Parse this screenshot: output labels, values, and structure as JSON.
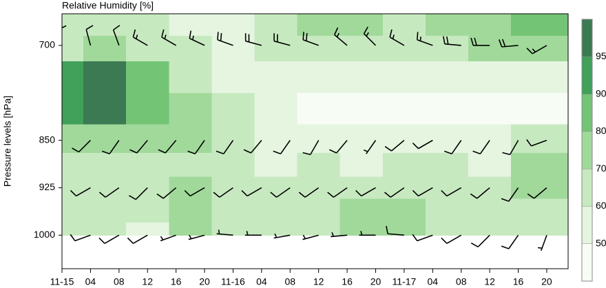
{
  "chart_data": {
    "type": "contour",
    "title": "Relative Humidity [%]",
    "ylabel": "Pressure levels [hPa]",
    "xlim": [
      0,
      71
    ],
    "ylim": [
      650,
      1053
    ],
    "xticks": [
      {
        "value": 0,
        "label": "11-15"
      },
      {
        "value": 4,
        "label": "04"
      },
      {
        "value": 8,
        "label": "08"
      },
      12,
      16,
      20,
      {
        "value": 24,
        "label": "11-16"
      },
      {
        "value": 28,
        "label": "04"
      },
      {
        "value": 32,
        "label": "08"
      },
      {
        "value": 36,
        "label": "12"
      },
      {
        "value": 40,
        "label": "16"
      },
      {
        "value": 44,
        "label": "20"
      },
      {
        "value": 48,
        "label": "11-17"
      },
      {
        "value": 52,
        "label": "04"
      },
      {
        "value": 56,
        "label": "08"
      },
      {
        "value": 60,
        "label": "12"
      },
      {
        "value": 64,
        "label": "16"
      },
      {
        "value": 68,
        "label": "20"
      }
    ],
    "yticks": [
      700,
      850,
      925,
      1000
    ],
    "levels": [
      50,
      60,
      70,
      80,
      90,
      95
    ],
    "colors": [
      "#f7fcf5",
      "#e5f5e0",
      "#c7e9c0",
      "#a1d99b",
      "#74c476",
      "#41a05a",
      "#3b7a52"
    ],
    "rh": {
      "x": [
        0,
        6,
        12,
        18,
        24,
        30,
        36,
        42,
        48,
        54,
        60,
        66
      ],
      "pressure": [
        670,
        700,
        750,
        800,
        850,
        890,
        925,
        960,
        1000
      ],
      "values": [
        [
          60,
          65,
          60,
          55,
          55,
          65,
          75,
          78,
          65,
          72,
          78,
          80
        ],
        [
          65,
          70,
          65,
          60,
          58,
          60,
          65,
          68,
          62,
          65,
          72,
          75
        ],
        [
          92,
          96,
          85,
          65,
          55,
          55,
          55,
          55,
          52,
          55,
          55,
          58
        ],
        [
          93,
          96,
          88,
          72,
          62,
          55,
          45,
          45,
          45,
          48,
          45,
          48
        ],
        [
          75,
          75,
          72,
          70,
          62,
          55,
          55,
          55,
          58,
          58,
          55,
          68
        ],
        [
          65,
          65,
          68,
          68,
          65,
          55,
          60,
          58,
          60,
          60,
          58,
          70
        ],
        [
          60,
          62,
          60,
          70,
          62,
          62,
          62,
          65,
          68,
          65,
          62,
          72
        ],
        [
          65,
          62,
          62,
          75,
          62,
          60,
          65,
          70,
          72,
          68,
          62,
          65
        ],
        [
          60,
          60,
          55,
          78,
          60,
          60,
          62,
          72,
          70,
          65,
          62,
          62
        ]
      ]
    },
    "wind": {
      "x": [
        0,
        4,
        8,
        12,
        16,
        20,
        24,
        28,
        32,
        36,
        40,
        44,
        48,
        52,
        56,
        60,
        64,
        68
      ],
      "levels": [
        700,
        850,
        925,
        1000
      ],
      "direction": [
        [
          350,
          345,
          340,
          300,
          300,
          295,
          290,
          285,
          285,
          290,
          310,
          315,
          300,
          290,
          275,
          270,
          265,
          240
        ],
        [
          240,
          225,
          215,
          220,
          220,
          215,
          215,
          220,
          215,
          210,
          220,
          215,
          230,
          240,
          215,
          215,
          210,
          250
        ],
        [
          250,
          240,
          235,
          225,
          230,
          240,
          235,
          240,
          235,
          235,
          235,
          240,
          235,
          240,
          240,
          230,
          215,
          230
        ],
        [
          260,
          250,
          240,
          240,
          250,
          255,
          275,
          270,
          260,
          255,
          265,
          270,
          275,
          250,
          240,
          225,
          215,
          200
        ]
      ],
      "speed": [
        [
          10,
          10,
          10,
          15,
          15,
          15,
          20,
          20,
          20,
          20,
          15,
          15,
          15,
          15,
          20,
          20,
          20,
          15
        ],
        [
          10,
          10,
          10,
          10,
          10,
          10,
          10,
          10,
          10,
          10,
          10,
          5,
          10,
          10,
          10,
          10,
          10,
          10
        ],
        [
          10,
          10,
          10,
          10,
          10,
          10,
          10,
          10,
          10,
          10,
          10,
          10,
          10,
          10,
          10,
          10,
          10,
          10
        ],
        [
          10,
          10,
          10,
          10,
          5,
          5,
          5,
          5,
          5,
          5,
          5,
          5,
          10,
          10,
          10,
          10,
          10,
          5
        ]
      ]
    }
  }
}
